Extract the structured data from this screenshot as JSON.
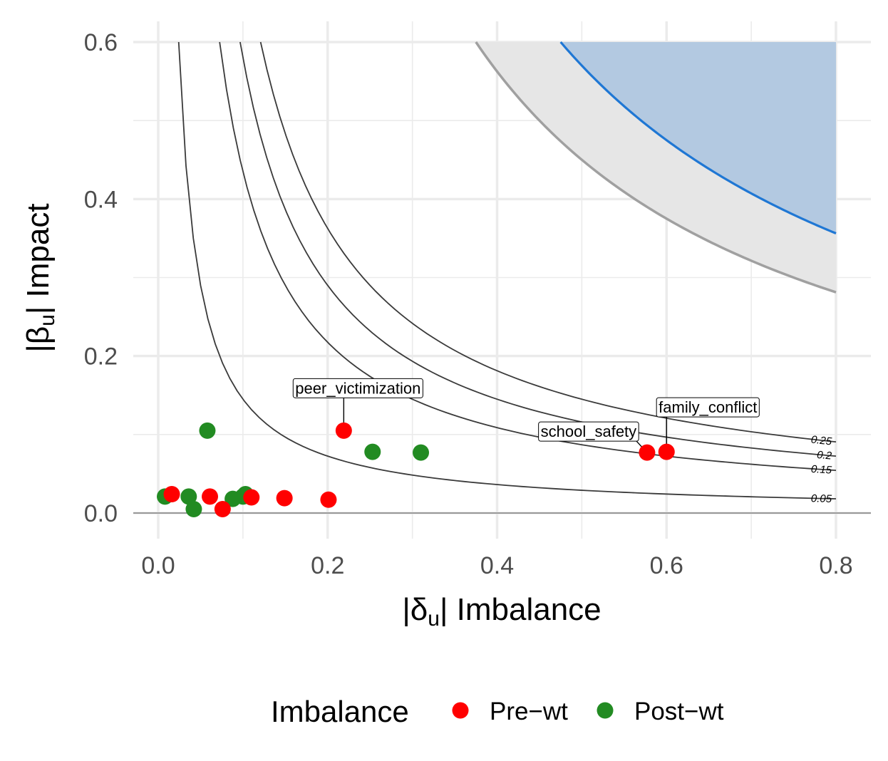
{
  "chart_data": {
    "type": "scatter",
    "xlabel_parts": [
      "|δ",
      "u",
      "| Imbalance"
    ],
    "ylabel_parts": [
      "|β",
      "u",
      "| Impact"
    ],
    "xlim": [
      -0.031,
      0.84
    ],
    "ylim": [
      -0.03,
      0.63
    ],
    "x_ticks": [
      0.0,
      0.2,
      0.4,
      0.6,
      0.8
    ],
    "x_tick_labels": [
      "0.0",
      "0.2",
      "0.4",
      "0.6",
      "0.8"
    ],
    "y_ticks": [
      0.0,
      0.2,
      0.4,
      0.6
    ],
    "y_tick_labels": [
      "0.0",
      "0.2",
      "0.4",
      "0.6"
    ],
    "grid": true,
    "legend": {
      "title": "Imbalance",
      "position": "bottom",
      "entries": [
        {
          "label": "Pre−wt",
          "color": "#ff0000"
        },
        {
          "label": "Post−wt",
          "color": "#228b22"
        }
      ]
    },
    "contours": [
      {
        "level": 0.05,
        "label": "0.05"
      },
      {
        "level": 0.15,
        "label": "0.15"
      },
      {
        "level": 0.2,
        "label": "0.2"
      },
      {
        "level": 0.25,
        "label": "0.25"
      }
    ],
    "shaded_band": {
      "lower": 0.225,
      "upper": 0.285,
      "color": "#e6e6e6",
      "border": "#a0a0a0"
    },
    "shaded_region": {
      "level": 0.285,
      "color": "#b3c9e1",
      "border": "#1f77d4"
    },
    "series": [
      {
        "name": "Pre−wt",
        "color": "#ff0000",
        "points": [
          {
            "x": 0.016,
            "y": 0.024
          },
          {
            "x": 0.061,
            "y": 0.021
          },
          {
            "x": 0.076,
            "y": 0.005
          },
          {
            "x": 0.11,
            "y": 0.02
          },
          {
            "x": 0.149,
            "y": 0.019
          },
          {
            "x": 0.201,
            "y": 0.017
          },
          {
            "x": 0.219,
            "y": 0.105,
            "label": "peer_victimization"
          },
          {
            "x": 0.577,
            "y": 0.077,
            "label": "school_safety"
          },
          {
            "x": 0.6,
            "y": 0.078,
            "label": "family_conflict"
          }
        ]
      },
      {
        "name": "Post−wt",
        "color": "#228b22",
        "points": [
          {
            "x": 0.008,
            "y": 0.021
          },
          {
            "x": 0.036,
            "y": 0.021
          },
          {
            "x": 0.042,
            "y": 0.005
          },
          {
            "x": 0.058,
            "y": 0.105
          },
          {
            "x": 0.088,
            "y": 0.018
          },
          {
            "x": 0.1,
            "y": 0.021
          },
          {
            "x": 0.103,
            "y": 0.024
          },
          {
            "x": 0.253,
            "y": 0.078
          },
          {
            "x": 0.31,
            "y": 0.077
          }
        ]
      }
    ]
  }
}
